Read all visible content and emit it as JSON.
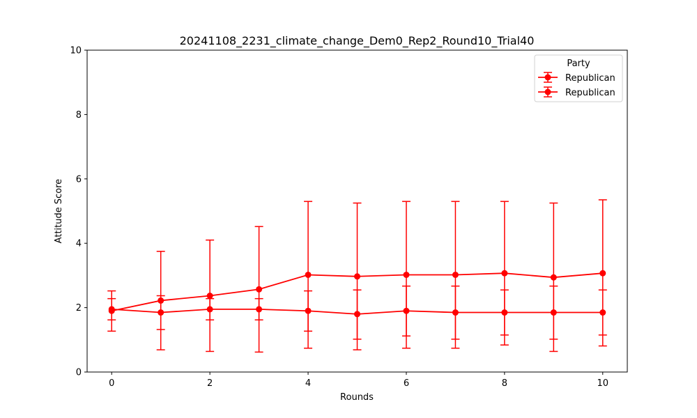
{
  "chart_data": {
    "type": "line",
    "title": "20241108_2231_climate_change_Dem0_Rep2_Round10_Trial40",
    "xlabel": "Rounds",
    "ylabel": "Attitude Score",
    "xlim": [
      -0.5,
      10.5
    ],
    "ylim": [
      0,
      10
    ],
    "x_ticks": [
      0,
      2,
      4,
      6,
      8,
      10
    ],
    "y_ticks": [
      0,
      2,
      4,
      6,
      8,
      10
    ],
    "x": [
      0,
      1,
      2,
      3,
      4,
      5,
      6,
      7,
      8,
      9,
      10
    ],
    "grid": false,
    "legend": {
      "title": "Party",
      "placement": "top-right"
    },
    "color": "#ff0000",
    "series": [
      {
        "name": "Republican",
        "values": [
          1.9,
          2.22,
          2.37,
          2.57,
          3.02,
          2.97,
          3.02,
          3.02,
          3.07,
          2.94,
          3.07
        ],
        "err_low": [
          1.27,
          0.69,
          0.64,
          0.62,
          0.74,
          0.69,
          0.74,
          0.74,
          0.84,
          0.64,
          0.81
        ],
        "err_high": [
          2.52,
          3.75,
          4.1,
          4.52,
          5.3,
          5.25,
          5.3,
          5.3,
          5.3,
          5.25,
          5.35
        ]
      },
      {
        "name": "Republican",
        "values": [
          1.95,
          1.85,
          1.95,
          1.95,
          1.9,
          1.8,
          1.9,
          1.85,
          1.85,
          1.85,
          1.85
        ],
        "err_low": [
          1.62,
          1.32,
          1.62,
          1.62,
          1.27,
          1.02,
          1.12,
          1.02,
          1.15,
          1.02,
          1.15
        ],
        "err_high": [
          2.28,
          2.37,
          2.28,
          2.28,
          2.52,
          2.55,
          2.67,
          2.67,
          2.55,
          2.67,
          2.55
        ]
      }
    ]
  }
}
